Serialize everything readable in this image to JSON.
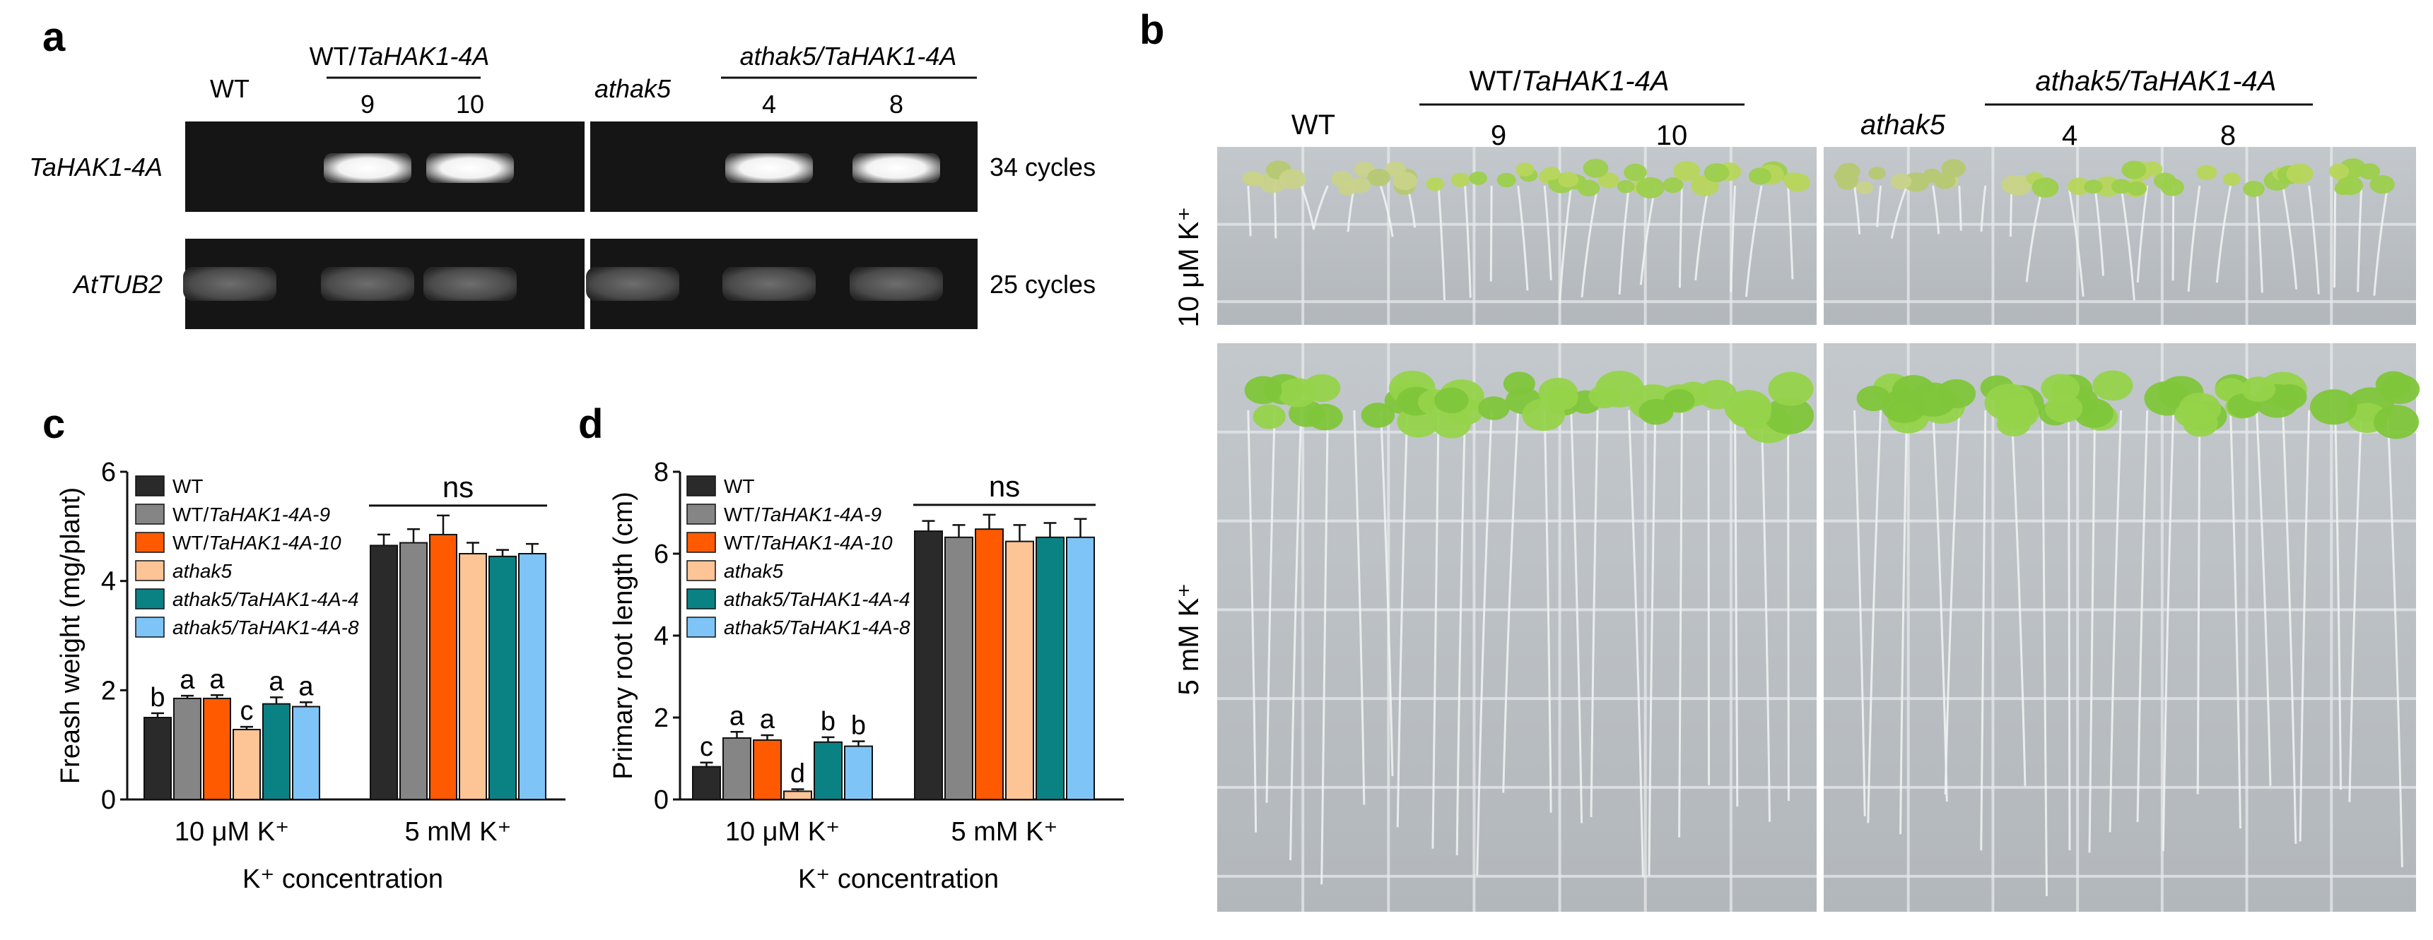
{
  "panels": {
    "a": {
      "label": "a",
      "header": {
        "wt": "WT",
        "wt_tahak_prefix": "WT/",
        "wt_tahak_gene": "TaHAK1-4A",
        "line_9": "9",
        "line_10": "10",
        "athak5": "athak5",
        "athak5_tahak": "athak5/TaHAK1-4A",
        "line_4": "4",
        "line_8": "8"
      },
      "rows": [
        {
          "gene": "TaHAK1-4A",
          "cycles": "34 cycles",
          "bands": [
            0,
            1,
            1,
            0,
            1,
            1
          ]
        },
        {
          "gene": "AtTUB2",
          "cycles": "25 cycles",
          "bands": [
            1,
            1,
            1,
            1,
            1,
            1
          ]
        }
      ]
    },
    "b": {
      "label": "b",
      "header": {
        "wt": "WT",
        "wt_tahak_prefix": "WT/",
        "wt_tahak_gene": "TaHAK1-4A",
        "line_9": "9",
        "line_10": "10",
        "athak5": "athak5",
        "athak5_tahak": "athak5/TaHAK1-4A",
        "line_4": "4",
        "line_8": "8"
      },
      "conditions": {
        "low": "10 μM K⁺",
        "high": "5 mM K⁺"
      }
    },
    "c": {
      "label": "c"
    },
    "d": {
      "label": "d"
    }
  },
  "legend": {
    "series": [
      {
        "prefix": "",
        "italic": "",
        "plain": "WT",
        "color": "#2a2a2a"
      },
      {
        "prefix": "WT/",
        "italic": "TaHAK1-4A-9",
        "plain": "",
        "color": "#858585"
      },
      {
        "prefix": "WT/",
        "italic": "TaHAK1-4A-10",
        "plain": "",
        "color": "#ff5a00"
      },
      {
        "prefix": "",
        "italic": "athak5",
        "plain": "",
        "color": "#fdc496"
      },
      {
        "prefix": "",
        "italic": "athak5/TaHAK1-4A-4",
        "plain": "",
        "color": "#0a8284"
      },
      {
        "prefix": "",
        "italic": "athak5/TaHAK1-4A-8",
        "plain": "",
        "color": "#7ec4f7"
      }
    ]
  },
  "chart_data": [
    {
      "type": "bar",
      "ylabel": "Freash weight (mg/plant)",
      "xlabel": "K⁺ concentration",
      "categories": [
        "10 μM K⁺",
        "5 mM K⁺"
      ],
      "ylim": [
        0,
        6
      ],
      "yticks": [
        0,
        2,
        4,
        6
      ],
      "series": [
        {
          "name": "WT",
          "values": [
            1.5,
            4.65
          ],
          "errors": [
            0.08,
            0.2
          ],
          "letters": [
            "b",
            ""
          ]
        },
        {
          "name": "WT/TaHAK1-4A-9",
          "values": [
            1.85,
            4.7
          ],
          "errors": [
            0.05,
            0.25
          ],
          "letters": [
            "a",
            ""
          ]
        },
        {
          "name": "WT/TaHAK1-4A-10",
          "values": [
            1.85,
            4.85
          ],
          "errors": [
            0.06,
            0.35
          ],
          "letters": [
            "a",
            ""
          ]
        },
        {
          "name": "athak5",
          "values": [
            1.28,
            4.5
          ],
          "errors": [
            0.05,
            0.2
          ],
          "letters": [
            "c",
            ""
          ]
        },
        {
          "name": "athak5/TaHAK1-4A-4",
          "values": [
            1.75,
            4.45
          ],
          "errors": [
            0.12,
            0.12
          ],
          "letters": [
            "a",
            ""
          ]
        },
        {
          "name": "athak5/TaHAK1-4A-8",
          "values": [
            1.7,
            4.5
          ],
          "errors": [
            0.08,
            0.18
          ],
          "letters": [
            "a",
            ""
          ]
        }
      ],
      "annotation": "ns"
    },
    {
      "type": "bar",
      "ylabel": "Primary root length (cm)",
      "xlabel": "K⁺ concentration",
      "categories": [
        "10 μM K⁺",
        "5 mM K⁺"
      ],
      "ylim": [
        0,
        8
      ],
      "yticks": [
        0,
        2,
        4,
        6,
        8
      ],
      "series": [
        {
          "name": "WT",
          "values": [
            0.8,
            6.55
          ],
          "errors": [
            0.1,
            0.25
          ],
          "letters": [
            "c",
            ""
          ]
        },
        {
          "name": "WT/TaHAK1-4A-9",
          "values": [
            1.5,
            6.4
          ],
          "errors": [
            0.15,
            0.3
          ],
          "letters": [
            "a",
            ""
          ]
        },
        {
          "name": "WT/TaHAK1-4A-10",
          "values": [
            1.45,
            6.6
          ],
          "errors": [
            0.12,
            0.35
          ],
          "letters": [
            "a",
            ""
          ]
        },
        {
          "name": "athak5",
          "values": [
            0.2,
            6.3
          ],
          "errors": [
            0.05,
            0.4
          ],
          "letters": [
            "d",
            ""
          ]
        },
        {
          "name": "athak5/TaHAK1-4A-4",
          "values": [
            1.4,
            6.4
          ],
          "errors": [
            0.12,
            0.35
          ],
          "letters": [
            "b",
            ""
          ]
        },
        {
          "name": "athak5/TaHAK1-4A-8",
          "values": [
            1.3,
            6.4
          ],
          "errors": [
            0.12,
            0.45
          ],
          "letters": [
            "b",
            ""
          ]
        }
      ],
      "annotation": "ns"
    }
  ]
}
